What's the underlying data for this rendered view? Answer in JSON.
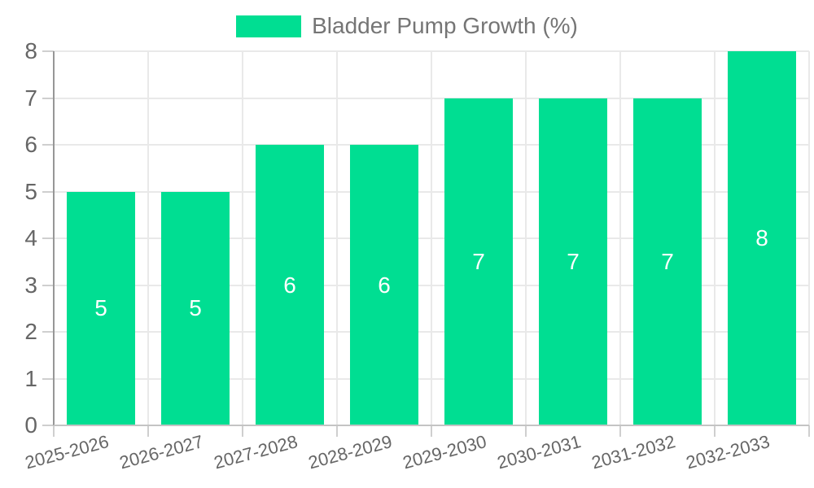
{
  "legend": {
    "label": "Bladder Pump Growth (%)"
  },
  "colors": {
    "bar": "#00DE92",
    "bar_value_label": "#ffffff",
    "gridline": "#e9e9e9",
    "tick_mark": "#cfcfcf",
    "y_axis_line": "#979797",
    "x_axis_line": "#c4c4c4",
    "axis_text": "#666666",
    "legend_text": "#757575",
    "background": "#ffffff"
  },
  "chart_data": {
    "type": "bar",
    "title": "Bladder Pump Growth (%)",
    "categories": [
      "2025-2026",
      "2026-2027",
      "2027-2028",
      "2028-2029",
      "2029-2030",
      "2030-2031",
      "2031-2032",
      "2032-2033"
    ],
    "series": [
      {
        "name": "Bladder Pump Growth (%)",
        "color": "#00DE92",
        "values": [
          5,
          5,
          6,
          6,
          7,
          7,
          7,
          8
        ]
      }
    ],
    "xlabel": "",
    "ylabel": "",
    "ylim": [
      0,
      8
    ],
    "yticks": [
      0,
      1,
      2,
      3,
      4,
      5,
      6,
      7,
      8
    ],
    "grid": true,
    "legend_position": "top-center",
    "value_labels": "inside-center",
    "x_label_rotation_deg": -15
  }
}
